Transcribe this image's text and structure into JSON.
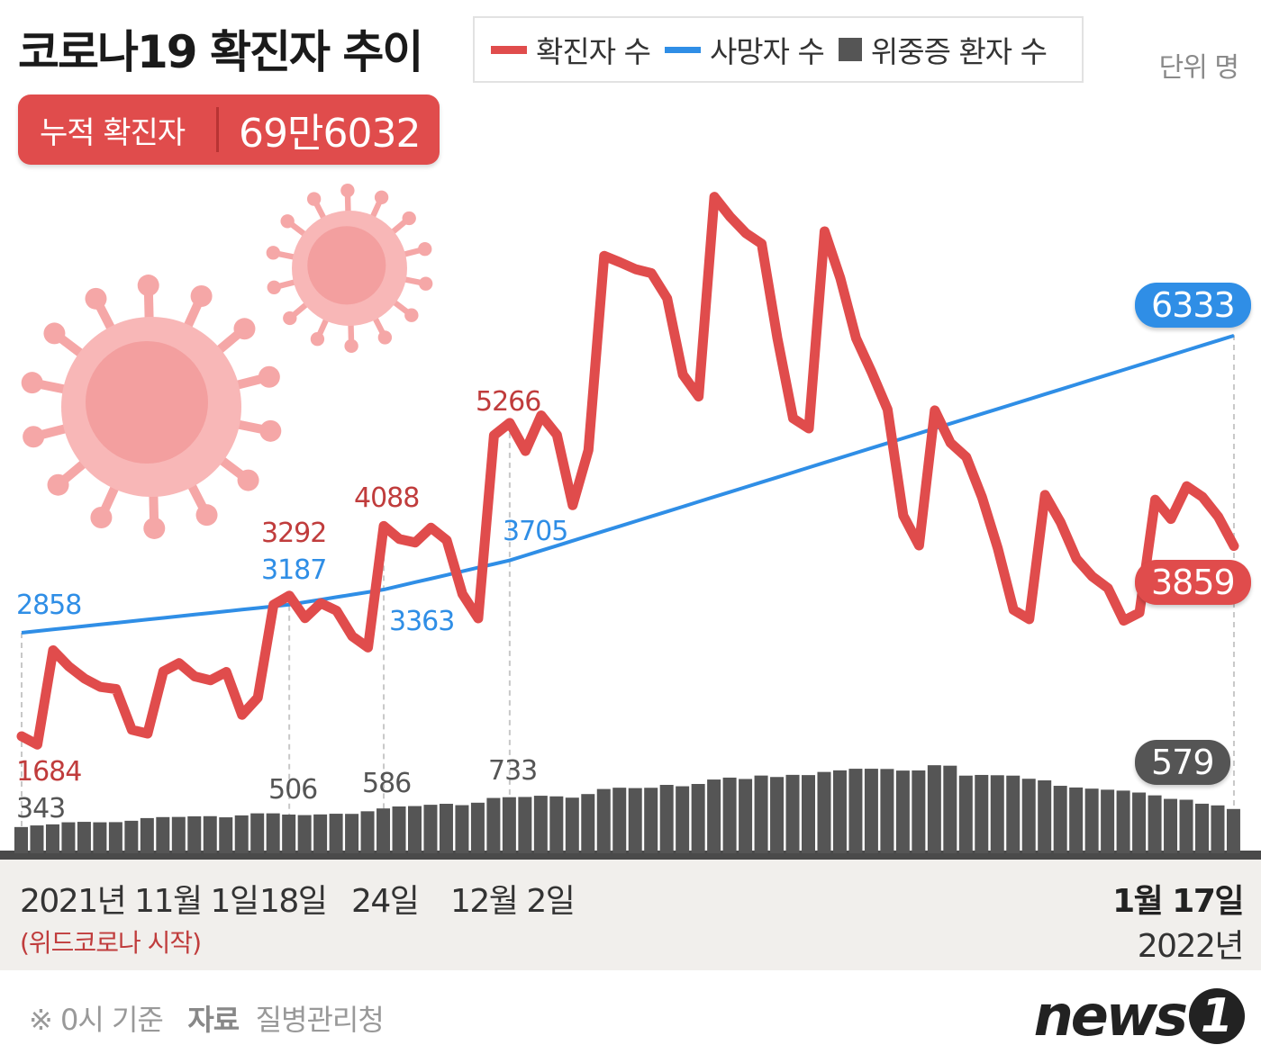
{
  "title": "코로나19 확진자 추이",
  "legend": {
    "confirmed": "확진자 수",
    "deaths": "사망자 수",
    "severe": "위중증 환자 수"
  },
  "unit": "단위 명",
  "cumulative": {
    "label": "누적 확진자",
    "value": "69만6032"
  },
  "x_labels": {
    "start": "2021년 11월 1일",
    "start_note": "(위드코로나 시작)",
    "nov18": "18일",
    "nov24": "24일",
    "dec2": "12월 2일",
    "end": "1월 17일",
    "end_year": "2022년"
  },
  "footer": {
    "note": "※ 0시 기준",
    "source_label": "자료",
    "source": "질병관리청"
  },
  "logo": {
    "text": "news",
    "num": "1"
  },
  "colors": {
    "confirmed": "#e04c4c",
    "deaths": "#2f8ee6",
    "severe": "#555555",
    "axis_band": "#f1efec"
  },
  "chart_data": {
    "type": "line+bar",
    "x_start": "2021-11-01",
    "x_end": "2022-01-17",
    "series": [
      {
        "name": "확진자 수",
        "type": "line",
        "color": "#e04c4c",
        "values": [
          1684,
          1589,
          2667,
          2482,
          2343,
          2248,
          2224,
          1758,
          1715,
          2425,
          2520,
          2368,
          2324,
          2419,
          1929,
          2125,
          3187,
          3292,
          3034,
          3205,
          3120,
          2827,
          2699,
          4088,
          3938,
          3899,
          4068,
          3925,
          3309,
          3032,
          5123,
          5266,
          4944,
          5352,
          5128,
          4325,
          4954,
          7175,
          7102,
          7022,
          6977,
          6689,
          5817,
          5567,
          7850,
          7622,
          7435,
          7314,
          6236,
          5318,
          5202,
          7456,
          6919,
          6233,
          5842,
          5419,
          4207,
          3865,
          5409,
          5037,
          4875,
          4415,
          3833,
          3129,
          3022,
          4443,
          4126,
          3713,
          3511,
          3376,
          3005,
          3097,
          4388,
          4167,
          4542,
          4420,
          4194,
          3859
        ]
      },
      {
        "name": "사망자 수",
        "type": "line",
        "color": "#2f8ee6",
        "values": [
          2858,
          2878,
          2897,
          2916,
          2936,
          2955,
          2974,
          2993,
          3013,
          3032,
          3051,
          3071,
          3090,
          3109,
          3129,
          3148,
          3167,
          3187,
          3216,
          3245,
          3275,
          3304,
          3333,
          3363,
          3406,
          3449,
          3491,
          3534,
          3577,
          3620,
          3662,
          3705,
          3762,
          3819,
          3876,
          3934,
          3991,
          4048,
          4105,
          4162,
          4219,
          4276,
          4333,
          4391,
          4448,
          4505,
          4562,
          4619,
          4676,
          4733,
          4791,
          4848,
          4905,
          4962,
          5019,
          5076,
          5133,
          5190,
          5248,
          5305,
          5362,
          5419,
          5476,
          5533,
          5590,
          5648,
          5705,
          5762,
          5819,
          5876,
          5933,
          5990,
          6047,
          6105,
          6162,
          6219,
          6276,
          6333
        ]
      },
      {
        "name": "위중증 환자 수",
        "type": "bar",
        "color": "#555555",
        "values": [
          343,
          364,
          378,
          405,
          411,
          405,
          407,
          425,
          460,
          473,
          475,
          483,
          485,
          470,
          495,
          522,
          522,
          506,
          499,
          508,
          517,
          515,
          549,
          586,
          612,
          617,
          634,
          647,
          629,
          661,
          723,
          733,
          736,
          752,
          744,
          727,
          774,
          840,
          857,
          852,
          856,
          894,
          876,
          906,
          964,
          989,
          971,
          1016,
          997,
          1025,
          1022,
          1063,
          1084,
          1105,
          1105,
          1102,
          1081,
          1083,
          1151,
          1145,
          1015,
          1024,
          1020,
          1015,
          974,
          953,
          882,
          860,
          845,
          831,
          819,
          794,
          757,
          711,
          700,
          648,
          626,
          579
        ]
      }
    ],
    "data_labels": {
      "confirmed": {
        "nov1": "1684",
        "nov18": "3292",
        "nov24": "4088",
        "dec2": "5266",
        "jan17": "3859"
      },
      "deaths": {
        "nov1": "2858",
        "nov18": "3187",
        "nov24": "3363",
        "dec2": "3705",
        "jan17": "6333"
      },
      "severe": {
        "nov1": "343",
        "nov18": "506",
        "nov24": "586",
        "dec2": "733",
        "jan17": "579"
      }
    }
  }
}
